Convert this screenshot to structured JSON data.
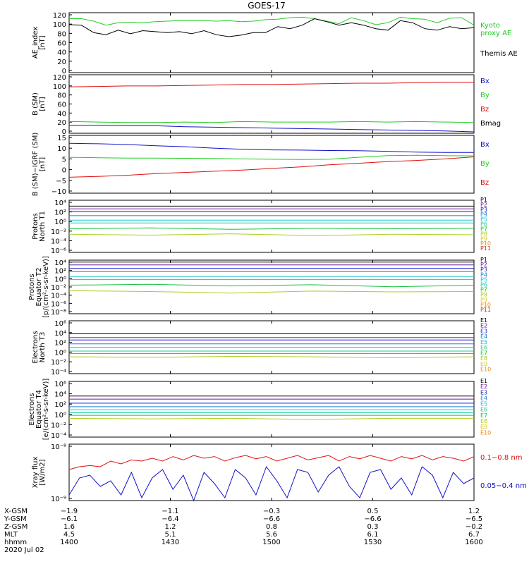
{
  "title": "GOES-17",
  "colors": {
    "black": "#000000",
    "green": "#22cc22",
    "red": "#dd1111",
    "blue": "#1111cc",
    "P": [
      "#000000",
      "#6b1a9a",
      "#1a1acc",
      "#1a7fd6",
      "#19c0d0",
      "#19c9a0",
      "#19c040",
      "#a7d020",
      "#e0c818",
      "#f08a14",
      "#d42c18",
      "#a00000"
    ]
  },
  "bottom": {
    "row_labels": [
      "X-GSM",
      "Y-GSM",
      "Z-GSM",
      "MLT",
      "hhmm"
    ],
    "date": "2020 Jul 02",
    "columns": [
      [
        "−1.9",
        "−6.1",
        "1.6",
        "4.5",
        "1400"
      ],
      [
        "−1.1",
        "−6.4",
        "1.2",
        "5.1",
        "1430"
      ],
      [
        "−0.3",
        "−6.6",
        "0.8",
        "5.6",
        "1500"
      ],
      [
        "0.5",
        "−6.6",
        "0.3",
        "6.1",
        "1530"
      ],
      [
        "1.2",
        "−6.5",
        "−0.2",
        "6.7",
        "1600"
      ]
    ]
  },
  "chart_data": [
    {
      "type": "line",
      "ylabel": [
        "AE_index",
        "[nT]"
      ],
      "yticks": [
        "120",
        "100",
        "80",
        "60",
        "40",
        "20",
        "0"
      ],
      "ylim": [
        0,
        120
      ],
      "series": [
        {
          "name": "Kyoto proxy AE",
          "color": "#22cc22",
          "values": [
            108,
            108,
            103,
            95,
            100,
            101,
            100,
            102,
            103,
            104,
            104,
            104,
            103,
            104,
            102,
            103,
            106,
            107,
            110,
            111,
            108,
            103,
            98,
            110,
            104,
            96,
            100,
            111,
            108,
            107,
            100,
            109,
            110,
            95
          ]
        },
        {
          "name": "Themis AE",
          "color": "#000000",
          "values": [
            96,
            95,
            80,
            76,
            85,
            78,
            84,
            82,
            80,
            82,
            78,
            84,
            76,
            72,
            75,
            80,
            80,
            92,
            88,
            95,
            108,
            102,
            95,
            100,
            95,
            88,
            85,
            104,
            100,
            88,
            85,
            92,
            88,
            90
          ]
        }
      ]
    },
    {
      "type": "line",
      "ylabel": [
        "B (SM)",
        "[nT]"
      ],
      "yticks": [
        "120",
        "100",
        "80",
        "60",
        "40",
        "20",
        "0"
      ],
      "ylim": [
        0,
        125
      ],
      "series": [
        {
          "name": "Bx",
          "color": "#1111cc",
          "values": [
            17,
            17,
            16,
            16,
            14,
            13,
            12,
            11,
            10,
            9,
            8,
            7,
            6,
            5,
            3
          ]
        },
        {
          "name": "By",
          "color": "#22cc22",
          "values": [
            25,
            24,
            23,
            23,
            24,
            23,
            25,
            24,
            24,
            24,
            25,
            24,
            25,
            24,
            23
          ]
        },
        {
          "name": "Bz",
          "color": "#dd1111",
          "values": [
            99,
            100,
            101,
            101,
            102,
            103,
            104,
            104,
            105,
            106,
            107,
            107,
            108,
            109,
            109
          ]
        },
        {
          "name": "Bmag",
          "color": "#000000",
          "values": []
        }
      ]
    },
    {
      "type": "line",
      "ylabel": [
        "B (SM)−IGRF (SM)",
        "[nT]"
      ],
      "yticks": [
        "15",
        "10",
        "5",
        "0",
        "−5",
        "−10"
      ],
      "ylim": [
        -13,
        16
      ],
      "series": [
        {
          "name": "Bx",
          "color": "#1111cc",
          "values": [
            12,
            11.8,
            11.4,
            10.8,
            10.3,
            9.6,
            9,
            8.7,
            8.6,
            8.4,
            8.3,
            8,
            7.6,
            7.4,
            7.4
          ]
        },
        {
          "name": "By",
          "color": "#22cc22",
          "values": [
            5,
            4.8,
            4.6,
            4.6,
            4.5,
            4.4,
            4.2,
            4,
            3.9,
            4,
            5,
            5.8,
            6,
            5.8,
            5.7
          ]
        },
        {
          "name": "Bz",
          "color": "#dd1111",
          "values": [
            -5,
            -4.6,
            -4,
            -3.2,
            -2.6,
            -2,
            -1.4,
            -0.6,
            0.2,
            1.2,
            2,
            2.8,
            3.4,
            4.2,
            5.2
          ]
        }
      ]
    },
    {
      "type": "line",
      "log": true,
      "ylabel": [
        "Protons",
        "North T1"
      ],
      "yticks": [
        "10⁴",
        "10²",
        "10⁰",
        "10⁻²",
        "10⁻⁴",
        "10⁻⁶"
      ],
      "ylim": [
        -7,
        4.5
      ],
      "series": [
        {
          "name": "P1",
          "values": [
            3.2,
            3.2,
            3.2,
            3.2,
            3.2,
            3.2
          ]
        },
        {
          "name": "P2",
          "values": [
            2.6,
            2.6,
            2.6,
            2.6,
            2.6,
            2.6
          ]
        },
        {
          "name": "P3",
          "values": [
            2,
            2,
            2,
            2,
            2,
            2
          ]
        },
        {
          "name": "P4",
          "values": [
            1.1,
            1.1,
            1.1,
            1.1,
            1.1,
            1.1
          ]
        },
        {
          "name": "P5",
          "values": [
            0.1,
            0.1,
            0.1,
            0.1,
            0.1,
            0.1
          ]
        },
        {
          "name": "P6",
          "values": [
            -0.5,
            -0.5,
            -0.5,
            -0.5,
            -0.5,
            -0.5
          ]
        },
        {
          "name": "P7",
          "values": [
            -1.8,
            -1.6,
            -1.9,
            -1.7,
            -1.8,
            -1.7
          ]
        },
        {
          "name": "P8",
          "values": [
            -3,
            -3.2,
            -2.9,
            -3.3,
            -3,
            -3.1
          ]
        },
        {
          "name": "P9",
          "values": []
        },
        {
          "name": "P10",
          "values": []
        },
        {
          "name": "P11",
          "values": []
        }
      ]
    },
    {
      "type": "line",
      "log": true,
      "ylabel": [
        "Protons",
        "Equator T2",
        "[p/(cm²-s-sr-keV)]"
      ],
      "yticks": [
        "10⁴",
        "10²",
        "10⁰",
        "10⁻²",
        "10⁻⁴",
        "10⁻⁶",
        "10⁻⁸"
      ],
      "ylim": [
        -9,
        4.5
      ],
      "series": [
        {
          "name": "P1",
          "values": [
            4,
            4,
            4,
            4,
            4,
            4
          ]
        },
        {
          "name": "P2",
          "values": [
            3.3,
            3.3,
            3.3,
            3.3,
            3.3,
            3.3
          ]
        },
        {
          "name": "P3",
          "values": [
            2.4,
            2.4,
            2.4,
            2.4,
            2.4,
            2.4
          ]
        },
        {
          "name": "P4",
          "values": [
            1.6,
            1.6,
            1.6,
            1.6,
            1.6,
            1.6
          ]
        },
        {
          "name": "P5",
          "values": [
            0.4,
            0.4,
            0.4,
            0.4,
            0.4,
            0.4
          ]
        },
        {
          "name": "P6",
          "values": [
            -0.4,
            -0.4,
            -0.4,
            -0.4,
            -0.4,
            -0.4
          ]
        },
        {
          "name": "P7",
          "values": [
            -1.8,
            -1.6,
            -2,
            -1.7,
            -2.2,
            -1.8
          ]
        },
        {
          "name": "P8",
          "values": [
            -3.2,
            -3.4,
            -3.8,
            -3.3,
            -3.5,
            -3.4
          ]
        },
        {
          "name": "P9",
          "values": []
        },
        {
          "name": "P10",
          "values": []
        },
        {
          "name": "P11",
          "values": []
        }
      ]
    },
    {
      "type": "line",
      "log": true,
      "ylabel": [
        "Electrons",
        "North T3"
      ],
      "yticks": [
        "10⁶",
        "10⁴",
        "10²",
        "10⁰",
        "10⁻²",
        "10⁻⁴"
      ],
      "ylim": [
        -4.5,
        6.5
      ],
      "series": [
        {
          "name": "E1",
          "values": [
            3.8,
            3.8,
            3.8,
            3.8,
            3.8,
            3.8
          ]
        },
        {
          "name": "E2",
          "values": [
            3,
            3,
            3,
            3,
            3,
            3
          ]
        },
        {
          "name": "E3",
          "values": [
            2.5,
            2.5,
            2.5,
            2.5,
            2.5,
            2.5
          ]
        },
        {
          "name": "E4",
          "values": [
            1.7,
            1.7,
            1.7,
            1.7,
            1.7,
            1.7
          ]
        },
        {
          "name": "E5",
          "values": [
            1,
            1,
            1,
            1,
            1,
            1
          ]
        },
        {
          "name": "E6",
          "values": [
            0.2,
            0.2,
            0.2,
            0.2,
            0.2,
            0.2
          ]
        },
        {
          "name": "E7",
          "values": [
            -0.3,
            -0.3,
            -0.3,
            -0.3,
            -0.3,
            -0.3
          ]
        },
        {
          "name": "E8",
          "values": [
            -1,
            -1.1,
            -0.9,
            -1,
            -1.2,
            -1
          ]
        },
        {
          "name": "E9",
          "values": []
        },
        {
          "name": "E10",
          "values": []
        }
      ]
    },
    {
      "type": "line",
      "log": true,
      "ylabel": [
        "Electrons",
        "Equator T4",
        "[e/(cm²-s-sr-keV)]"
      ],
      "yticks": [
        "10⁶",
        "10⁴",
        "10²",
        "10⁰",
        "10⁻²",
        "10⁻⁴"
      ],
      "ylim": [
        -4.5,
        6.5
      ],
      "series": [
        {
          "name": "E1",
          "values": [
            3.6,
            3.6,
            3.6,
            3.6,
            3.6,
            3.6
          ]
        },
        {
          "name": "E2",
          "values": [
            3,
            3,
            3,
            3,
            3,
            3
          ]
        },
        {
          "name": "E3",
          "values": [
            2.2,
            2.2,
            2.2,
            2.2,
            2.2,
            2.2
          ]
        },
        {
          "name": "E4",
          "values": [
            1.5,
            1.5,
            1.5,
            1.5,
            1.5,
            1.5
          ]
        },
        {
          "name": "E5",
          "values": [
            0.9,
            0.9,
            0.9,
            0.9,
            0.9,
            0.9
          ]
        },
        {
          "name": "E6",
          "values": [
            0.3,
            0.3,
            0.3,
            0.3,
            0.3,
            0.3
          ]
        },
        {
          "name": "E7",
          "values": [
            -0.2,
            -0.2,
            -0.2,
            -0.2,
            -0.2,
            -0.2
          ]
        },
        {
          "name": "E8",
          "values": [
            -0.8,
            -0.9,
            -0.8,
            -1,
            -0.8,
            -0.8
          ]
        },
        {
          "name": "E9",
          "values": []
        },
        {
          "name": "E10",
          "values": []
        }
      ]
    },
    {
      "type": "line",
      "log": true,
      "ylabel": [
        "Xray flux",
        "[W/m2]"
      ],
      "yticks": [
        "10⁻⁸",
        "10⁻⁹"
      ],
      "ylim": [
        -9,
        -8
      ],
      "series": [
        {
          "name": "0.1−0.8 nm",
          "color": "#dd1111",
          "values": [
            -8.45,
            -8.4,
            -8.38,
            -8.4,
            -8.3,
            -8.35,
            -8.28,
            -8.3,
            -8.25,
            -8.3,
            -8.22,
            -8.28,
            -8.2,
            -8.25,
            -8.22,
            -8.3,
            -8.24,
            -8.2,
            -8.26,
            -8.22,
            -8.3,
            -8.25,
            -8.2,
            -8.28,
            -8.24,
            -8.2,
            -8.3,
            -8.22,
            -8.26,
            -8.2,
            -8.25,
            -8.3,
            -8.22,
            -8.26,
            -8.2,
            -8.28,
            -8.22,
            -8.25,
            -8.3,
            -8.22
          ]
        },
        {
          "name": "0.05−0.4 nm",
          "color": "#1111cc",
          "values": [
            -8.9,
            -8.6,
            -8.55,
            -8.75,
            -8.65,
            -8.9,
            -8.5,
            -8.95,
            -8.6,
            -8.45,
            -8.8,
            -8.55,
            -9,
            -8.5,
            -8.7,
            -8.95,
            -8.45,
            -8.6,
            -8.9,
            -8.4,
            -8.65,
            -8.95,
            -8.45,
            -8.5,
            -8.85,
            -8.55,
            -8.4,
            -8.75,
            -8.95,
            -8.5,
            -8.45,
            -8.8,
            -8.6,
            -8.9,
            -8.4,
            -8.55,
            -8.95,
            -8.5,
            -8.7,
            -8.6
          ]
        }
      ]
    }
  ]
}
